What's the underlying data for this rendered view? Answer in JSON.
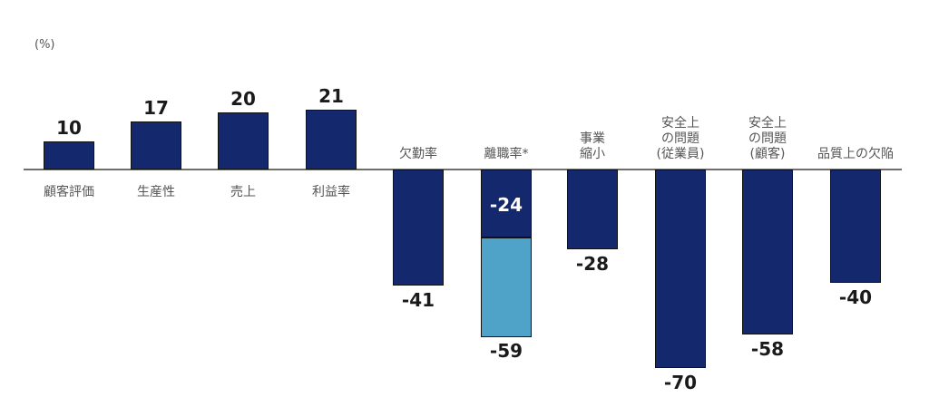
{
  "chart_data": {
    "type": "bar",
    "title": "",
    "xlabel": "",
    "ylabel": "(%)",
    "unit_label": "(%)",
    "ylim": [
      -75,
      25
    ],
    "grid": false,
    "legend": null,
    "categories": [
      "顧客評価",
      "生産性",
      "売上",
      "利益率",
      "欠勤率",
      "離職率*",
      "事業\n縮小",
      "安全上\nの問題\n(従業員)",
      "安全上\nの問題\n(顧客)",
      "品質上の欠陥"
    ],
    "values": [
      10,
      17,
      20,
      21,
      -41,
      -59,
      -28,
      -70,
      -58,
      -40
    ],
    "annotations": [
      {
        "category": "離職率*",
        "segments": [
          {
            "value": -24,
            "color": "#14286e",
            "label": "-24"
          },
          {
            "value": -59,
            "color": "#4fa3c8",
            "label": "-59"
          }
        ]
      }
    ],
    "colors": {
      "primary": "#14286e",
      "secondary": "#4fa3c8"
    }
  },
  "labels": {
    "unit": "(%)",
    "values": [
      "10",
      "17",
      "20",
      "21",
      "-41",
      "-24",
      "-59",
      "-28",
      "-70",
      "-58",
      "-40"
    ]
  }
}
